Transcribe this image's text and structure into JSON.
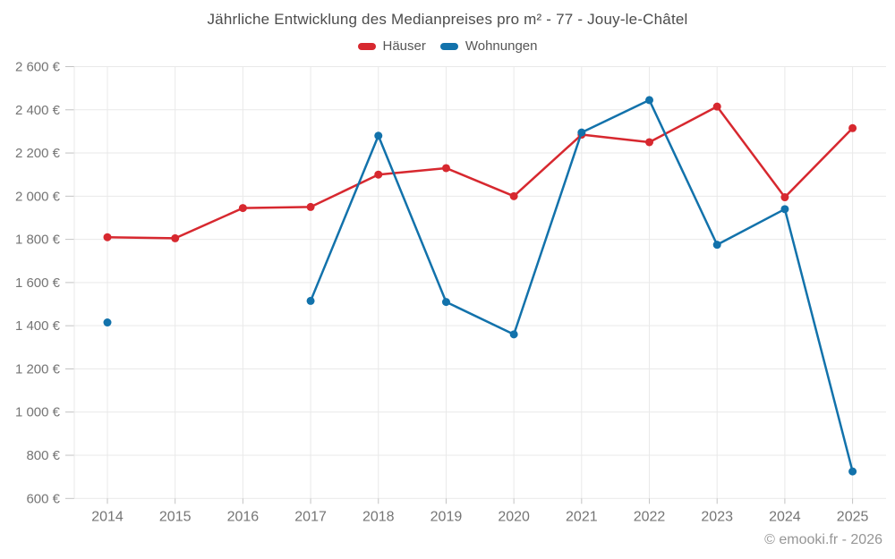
{
  "title": "Jährliche Entwicklung des Medianpreises pro m² - 77 - Jouy-le-Châtel",
  "watermark": "© emooki.fr - 2026",
  "chart_data": {
    "type": "line",
    "title": "Jährliche Entwicklung des Medianpreises pro m² - 77 - Jouy-le-Châtel",
    "categories": [
      "2014",
      "2015",
      "2016",
      "2017",
      "2018",
      "2019",
      "2020",
      "2021",
      "2022",
      "2023",
      "2024",
      "2025"
    ],
    "series": [
      {
        "name": "Häuser",
        "color": "#d7282f",
        "values": [
          1810,
          1805,
          1945,
          1950,
          2100,
          2130,
          2000,
          2285,
          2250,
          2415,
          1995,
          2315
        ]
      },
      {
        "name": "Wohnungen",
        "color": "#1272ab",
        "values": [
          1415,
          null,
          null,
          1515,
          2280,
          1510,
          1360,
          2295,
          2445,
          1775,
          1940,
          725
        ]
      }
    ],
    "ylim": [
      600,
      2600
    ],
    "y_tick_step": 200,
    "y_tick_labels": [
      "600 €",
      "800 €",
      "1 000 €",
      "1 200 €",
      "1 400 €",
      "1 600 €",
      "1 800 €",
      "2 000 €",
      "2 200 €",
      "2 400 €",
      "2 600 €"
    ],
    "grid": true,
    "legend_position": "top"
  }
}
